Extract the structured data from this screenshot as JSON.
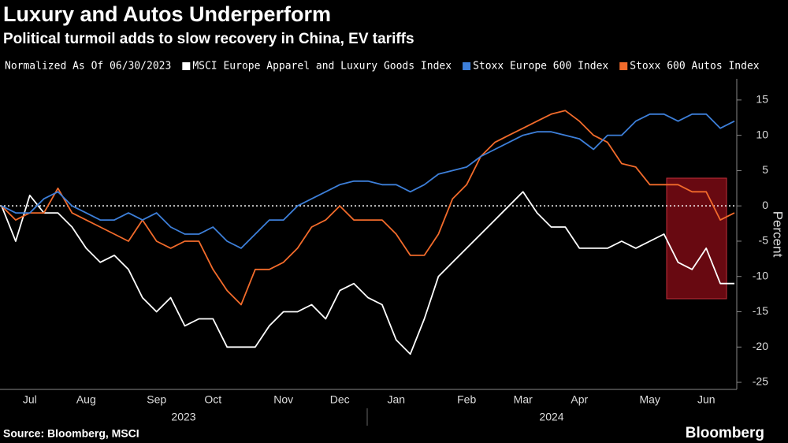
{
  "chart_data": {
    "type": "line",
    "title": "Luxury and Autos Underperform",
    "subtitle": "Political turmoil adds to slow recovery in China, EV tariffs",
    "legend_note": "Normalized As Of 06/30/2023",
    "y_label": "Percent",
    "source": "Source: Bloomberg, MSCI",
    "brand": "Bloomberg",
    "years": [
      "2023",
      "2024"
    ],
    "categories": [
      null,
      null,
      "Jul",
      null,
      null,
      null,
      "Aug",
      null,
      null,
      null,
      null,
      "Sep",
      null,
      null,
      null,
      "Oct",
      null,
      null,
      null,
      null,
      "Nov",
      null,
      null,
      null,
      "Dec",
      null,
      null,
      null,
      "Jan",
      null,
      null,
      null,
      null,
      "Feb",
      null,
      null,
      null,
      "Mar",
      null,
      null,
      null,
      "Apr",
      null,
      null,
      null,
      null,
      "May",
      null,
      null,
      null,
      "Jun",
      null,
      null
    ],
    "series": [
      {
        "name": "MSCI Europe Apparel and Luxury Goods Index",
        "color": "#ffffff",
        "values": [
          0,
          -5,
          1.5,
          -1,
          -1,
          -3,
          -6,
          -8,
          -7,
          -9,
          -13,
          -15,
          -13,
          -17,
          -16,
          -16,
          -20,
          -20,
          -20,
          -17,
          -15,
          -15,
          -14,
          -16,
          -12,
          -11,
          -13,
          -14,
          -19,
          -21,
          -16,
          -10,
          -8,
          -6,
          -4,
          -2,
          0,
          2,
          -1,
          -3,
          -3,
          -6,
          -6,
          -6,
          -5,
          -6,
          -5,
          -4,
          -8,
          -9,
          -6,
          -11,
          -11
        ]
      },
      {
        "name": "Stoxx Europe 600 Index",
        "color": "#3d7fd9",
        "values": [
          0,
          -1,
          -1,
          1,
          2,
          0,
          -1,
          -2,
          -2,
          -1,
          -2,
          -1,
          -3,
          -4,
          -4,
          -3,
          -5,
          -6,
          -4,
          -2,
          -2,
          0,
          1,
          2,
          3,
          3.5,
          3.5,
          3,
          3,
          2,
          3,
          4.5,
          5,
          5.5,
          7,
          8,
          9,
          10,
          10.5,
          10.5,
          10,
          9.5,
          8,
          10,
          10,
          12,
          13,
          13,
          12,
          13,
          13,
          11,
          12
        ]
      },
      {
        "name": "Stoxx 600 Autos Index",
        "color": "#f26b2b",
        "values": [
          0,
          -2,
          -1,
          -1,
          2.5,
          -1,
          -2,
          -3,
          -4,
          -5,
          -2,
          -5,
          -6,
          -5,
          -5,
          -9,
          -12,
          -14,
          -9,
          -9,
          -8,
          -6,
          -3,
          -2,
          0,
          -2,
          -2,
          -2,
          -4,
          -7,
          -7,
          -4,
          1,
          3,
          7,
          9,
          10,
          11,
          12,
          13,
          13.5,
          12,
          10,
          9,
          6,
          5.5,
          3,
          3,
          3,
          2,
          2,
          -2,
          -1
        ]
      }
    ],
    "ylim": [
      -26,
      18
    ],
    "yticks": [
      15,
      10,
      5,
      0,
      -5,
      -10,
      -15,
      -20,
      -25
    ],
    "zero_line": true
  }
}
